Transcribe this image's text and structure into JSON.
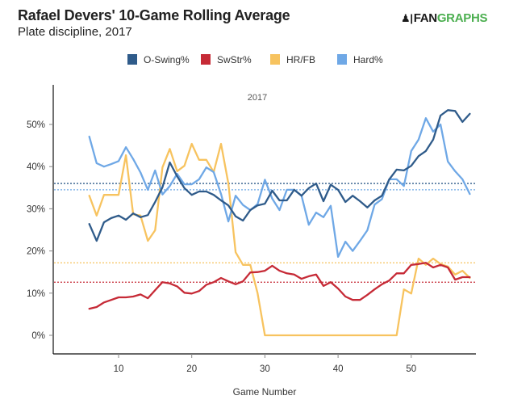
{
  "header": {
    "title": "Rafael Devers' 10-Game Rolling Average",
    "subtitle": "Plate discipline, 2017",
    "logo_mark": "♟|",
    "logo_fan": "FAN",
    "logo_graphs": "GRAPHS"
  },
  "chart_data": {
    "type": "line",
    "title": "Rafael Devers' 10-Game Rolling Average",
    "subtitle": "Plate discipline, 2017",
    "annotation": "2017",
    "xlabel": "Game Number",
    "ylabel": "",
    "xlim": [
      2,
      60
    ],
    "ylim": [
      -4,
      58
    ],
    "xticks": [
      10,
      20,
      30,
      40,
      50
    ],
    "xtick_labels": [
      "10",
      "20",
      "30",
      "40",
      "50"
    ],
    "yticks": [
      0,
      10,
      20,
      30,
      40,
      50
    ],
    "ytick_labels": [
      "0%",
      "10%",
      "20%",
      "30%",
      "40%",
      "50%"
    ],
    "grid": false,
    "legend_position": "top",
    "x": [
      6,
      7,
      8,
      9,
      10,
      11,
      12,
      13,
      14,
      15,
      16,
      17,
      18,
      19,
      20,
      21,
      22,
      23,
      24,
      25,
      26,
      27,
      28,
      29,
      30,
      31,
      32,
      33,
      34,
      35,
      36,
      37,
      38,
      39,
      40,
      41,
      42,
      43,
      44,
      45,
      46,
      47,
      48,
      49,
      50,
      51,
      52,
      53,
      54,
      55,
      56,
      57,
      58
    ],
    "series": [
      {
        "name": "O-Swing%",
        "color": "#2f5b8a",
        "average": 36.0,
        "values": [
          26.4,
          22.4,
          26.8,
          27.8,
          28.4,
          27.4,
          28.9,
          28.0,
          28.5,
          31.6,
          35.1,
          41.0,
          37.7,
          34.9,
          33.3,
          34.1,
          34.1,
          33.3,
          32.0,
          30.8,
          28.2,
          27.2,
          29.7,
          30.8,
          31.2,
          34.3,
          32.0,
          32.0,
          34.5,
          33.1,
          34.9,
          36.0,
          31.8,
          35.7,
          34.5,
          31.6,
          33.1,
          31.8,
          30.3,
          32.0,
          33.1,
          37.0,
          39.3,
          39.1,
          40.2,
          42.5,
          43.7,
          46.4,
          52.1,
          53.4,
          53.2,
          50.6,
          52.5
        ]
      },
      {
        "name": "SwStr%",
        "color": "#c62a36",
        "average": 12.6,
        "values": [
          6.3,
          6.7,
          7.8,
          8.4,
          9.0,
          9.0,
          9.2,
          9.7,
          8.8,
          10.7,
          12.6,
          12.3,
          11.6,
          10.1,
          9.9,
          10.5,
          12.0,
          12.6,
          13.6,
          12.8,
          12.1,
          12.8,
          14.9,
          15.0,
          15.3,
          16.5,
          15.3,
          14.7,
          14.4,
          13.4,
          14.0,
          14.4,
          11.7,
          12.6,
          11.1,
          9.2,
          8.4,
          8.4,
          9.6,
          10.9,
          12.1,
          13.0,
          14.7,
          14.7,
          16.7,
          16.9,
          17.2,
          16.1,
          16.7,
          16.1,
          13.2,
          13.8,
          13.8
        ]
      },
      {
        "name": "HR/FB",
        "color": "#f7c35f",
        "average": 17.2,
        "values": [
          33.1,
          28.4,
          33.3,
          33.3,
          33.3,
          42.7,
          28.7,
          28.4,
          22.4,
          24.9,
          39.8,
          44.2,
          38.9,
          40.2,
          45.4,
          41.6,
          41.6,
          38.7,
          45.4,
          36.0,
          19.7,
          16.7,
          16.7,
          10.0,
          0.0,
          0.0,
          0.0,
          0.0,
          0.0,
          0.0,
          0.0,
          0.0,
          0.0,
          0.0,
          0.0,
          0.0,
          0.0,
          0.0,
          0.0,
          0.0,
          0.0,
          0.0,
          0.0,
          10.9,
          9.9,
          18.2,
          16.7,
          18.2,
          16.9,
          16.3,
          14.4,
          15.3,
          13.6
        ]
      },
      {
        "name": "Hard%",
        "color": "#6fa8e6",
        "average": 34.5,
        "values": [
          47.1,
          40.8,
          40.0,
          40.6,
          41.3,
          44.6,
          41.8,
          38.6,
          34.5,
          39.1,
          33.4,
          35.4,
          38.3,
          35.8,
          35.8,
          37.0,
          39.8,
          38.7,
          33.5,
          27.0,
          33.1,
          30.9,
          29.7,
          31.1,
          36.9,
          32.4,
          29.7,
          34.5,
          34.5,
          33.1,
          26.2,
          29.1,
          28.0,
          30.7,
          18.6,
          22.2,
          20.0,
          22.4,
          24.9,
          31.0,
          32.3,
          37.0,
          37.0,
          35.4,
          43.7,
          46.4,
          51.5,
          48.3,
          50.0,
          41.2,
          38.9,
          37.0,
          33.5
        ]
      }
    ]
  }
}
